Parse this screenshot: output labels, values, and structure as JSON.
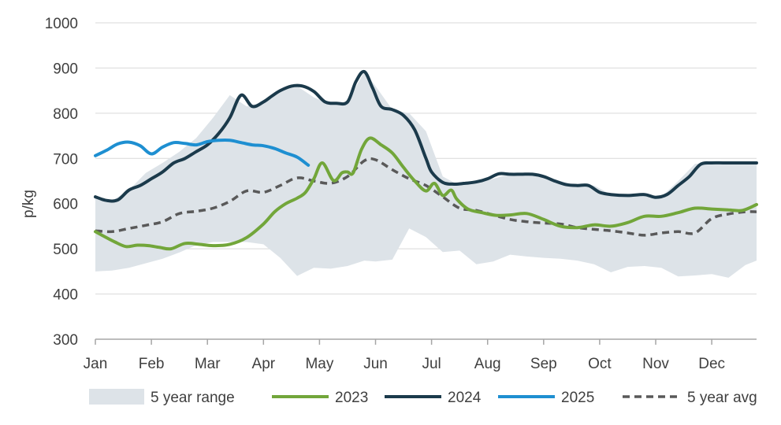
{
  "chart_data": {
    "type": "line",
    "title": "",
    "xlabel": "",
    "ylabel": "p/kg",
    "ylim": [
      300,
      1000
    ],
    "yticks": [
      300,
      400,
      500,
      600,
      700,
      800,
      900,
      1000
    ],
    "months": [
      "Jan",
      "Feb",
      "Mar",
      "Apr",
      "May",
      "Jun",
      "Jul",
      "Aug",
      "Sep",
      "Oct",
      "Nov",
      "Dec"
    ],
    "xlim": [
      0,
      11.8
    ],
    "grid": true,
    "legend_position": "bottom",
    "range": {
      "name": "5 year range",
      "color": "#dde3e8",
      "x": [
        0,
        0.3,
        0.6,
        0.9,
        1.2,
        1.5,
        1.8,
        2.1,
        2.4,
        2.7,
        3.0,
        3.3,
        3.6,
        3.9,
        4.2,
        4.5,
        4.8,
        5.0,
        5.3,
        5.6,
        5.9,
        6.2,
        6.5,
        6.8,
        7.1,
        7.4,
        7.7,
        8.0,
        8.3,
        8.6,
        8.9,
        9.2,
        9.5,
        9.8,
        10.1,
        10.4,
        10.7,
        11.0,
        11.3,
        11.6,
        11.8
      ],
      "lower": [
        450,
        452,
        458,
        468,
        478,
        492,
        508,
        515,
        515,
        515,
        510,
        480,
        440,
        458,
        456,
        462,
        474,
        472,
        476,
        545,
        526,
        493,
        496,
        466,
        472,
        487,
        483,
        480,
        478,
        474,
        466,
        448,
        460,
        462,
        458,
        439,
        441,
        444,
        436,
        464,
        474
      ],
      "upper": [
        615,
        607,
        630,
        668,
        690,
        715,
        745,
        790,
        840,
        815,
        825,
        851,
        860,
        835,
        820,
        825,
        892,
        860,
        808,
        800,
        760,
        660,
        640,
        645,
        655,
        665,
        665,
        660,
        650,
        640,
        640,
        620,
        620,
        618,
        615,
        650,
        688,
        692,
        690,
        690,
        690
      ]
    },
    "series": [
      {
        "name": "2023",
        "color": "#72a63a",
        "dash": false,
        "x": [
          0,
          0.15,
          0.35,
          0.55,
          0.75,
          0.95,
          1.15,
          1.35,
          1.6,
          1.85,
          2.1,
          2.4,
          2.7,
          3.0,
          3.2,
          3.4,
          3.6,
          3.75,
          3.9,
          4.05,
          4.25,
          4.4,
          4.5,
          4.6,
          4.75,
          4.9,
          5.1,
          5.3,
          5.5,
          5.7,
          5.9,
          6.05,
          6.2,
          6.35,
          6.45,
          6.65,
          6.9,
          7.15,
          7.4,
          7.7,
          8.0,
          8.3,
          8.6,
          8.9,
          9.2,
          9.5,
          9.8,
          10.1,
          10.4,
          10.7,
          11.0,
          11.3,
          11.55,
          11.8
        ],
        "y": [
          538,
          528,
          515,
          505,
          508,
          507,
          503,
          500,
          512,
          510,
          507,
          510,
          525,
          555,
          582,
          600,
          612,
          625,
          655,
          690,
          651,
          668,
          670,
          668,
          720,
          745,
          730,
          712,
          680,
          650,
          628,
          645,
          618,
          630,
          610,
          588,
          580,
          574,
          575,
          578,
          565,
          550,
          547,
          553,
          550,
          558,
          572,
          572,
          580,
          590,
          588,
          586,
          585,
          598
        ]
      },
      {
        "name": "2024",
        "color": "#1b3a4b",
        "dash": false,
        "x": [
          0,
          0.2,
          0.4,
          0.6,
          0.8,
          1.0,
          1.2,
          1.4,
          1.6,
          1.8,
          2.0,
          2.2,
          2.4,
          2.6,
          2.8,
          3.0,
          3.15,
          3.3,
          3.5,
          3.7,
          3.9,
          4.1,
          4.3,
          4.5,
          4.65,
          4.8,
          4.95,
          5.1,
          5.3,
          5.5,
          5.7,
          5.9,
          6.0,
          6.2,
          6.4,
          6.6,
          6.8,
          7.0,
          7.2,
          7.4,
          7.6,
          7.8,
          8.0,
          8.2,
          8.4,
          8.6,
          8.8,
          9.0,
          9.2,
          9.5,
          9.8,
          10.0,
          10.2,
          10.4,
          10.6,
          10.8,
          11.0,
          11.2,
          11.4,
          11.6,
          11.8
        ],
        "y": [
          615,
          607,
          608,
          630,
          640,
          655,
          670,
          690,
          700,
          715,
          730,
          755,
          790,
          840,
          815,
          825,
          838,
          850,
          860,
          860,
          848,
          825,
          822,
          825,
          870,
          892,
          855,
          815,
          808,
          795,
          763,
          700,
          670,
          647,
          643,
          645,
          648,
          655,
          666,
          665,
          665,
          665,
          660,
          650,
          642,
          640,
          640,
          625,
          620,
          618,
          620,
          614,
          620,
          640,
          660,
          687,
          690,
          690,
          690,
          690,
          690
        ]
      },
      {
        "name": "2025",
        "color": "#1e8fd1",
        "dash": false,
        "x": [
          0,
          0.2,
          0.4,
          0.6,
          0.8,
          1.0,
          1.2,
          1.4,
          1.6,
          1.8,
          2.0,
          2.2,
          2.4,
          2.6,
          2.8,
          3.0,
          3.2,
          3.4,
          3.6,
          3.8
        ],
        "y": [
          706,
          718,
          732,
          736,
          728,
          710,
          725,
          735,
          733,
          730,
          737,
          740,
          740,
          735,
          730,
          728,
          722,
          712,
          703,
          685
        ]
      },
      {
        "name": "5 year avg",
        "color": "#595959",
        "dash": true,
        "x": [
          0,
          0.3,
          0.6,
          0.9,
          1.2,
          1.5,
          1.8,
          2.1,
          2.4,
          2.7,
          3.0,
          3.3,
          3.6,
          3.9,
          4.2,
          4.5,
          4.8,
          5.0,
          5.3,
          5.6,
          5.9,
          6.2,
          6.5,
          6.8,
          7.1,
          7.4,
          7.7,
          8.0,
          8.3,
          8.6,
          8.9,
          9.2,
          9.5,
          9.8,
          10.1,
          10.4,
          10.7,
          11.0,
          11.3,
          11.6,
          11.8
        ],
        "y": [
          540,
          538,
          545,
          552,
          560,
          578,
          583,
          590,
          605,
          628,
          625,
          640,
          657,
          650,
          645,
          660,
          695,
          697,
          675,
          655,
          640,
          615,
          590,
          585,
          575,
          565,
          560,
          557,
          555,
          547,
          543,
          540,
          535,
          530,
          535,
          538,
          535,
          567,
          577,
          582,
          582
        ]
      }
    ],
    "legend": [
      "5 year range",
      "2023",
      "2024",
      "2025",
      "5 year avg"
    ]
  }
}
